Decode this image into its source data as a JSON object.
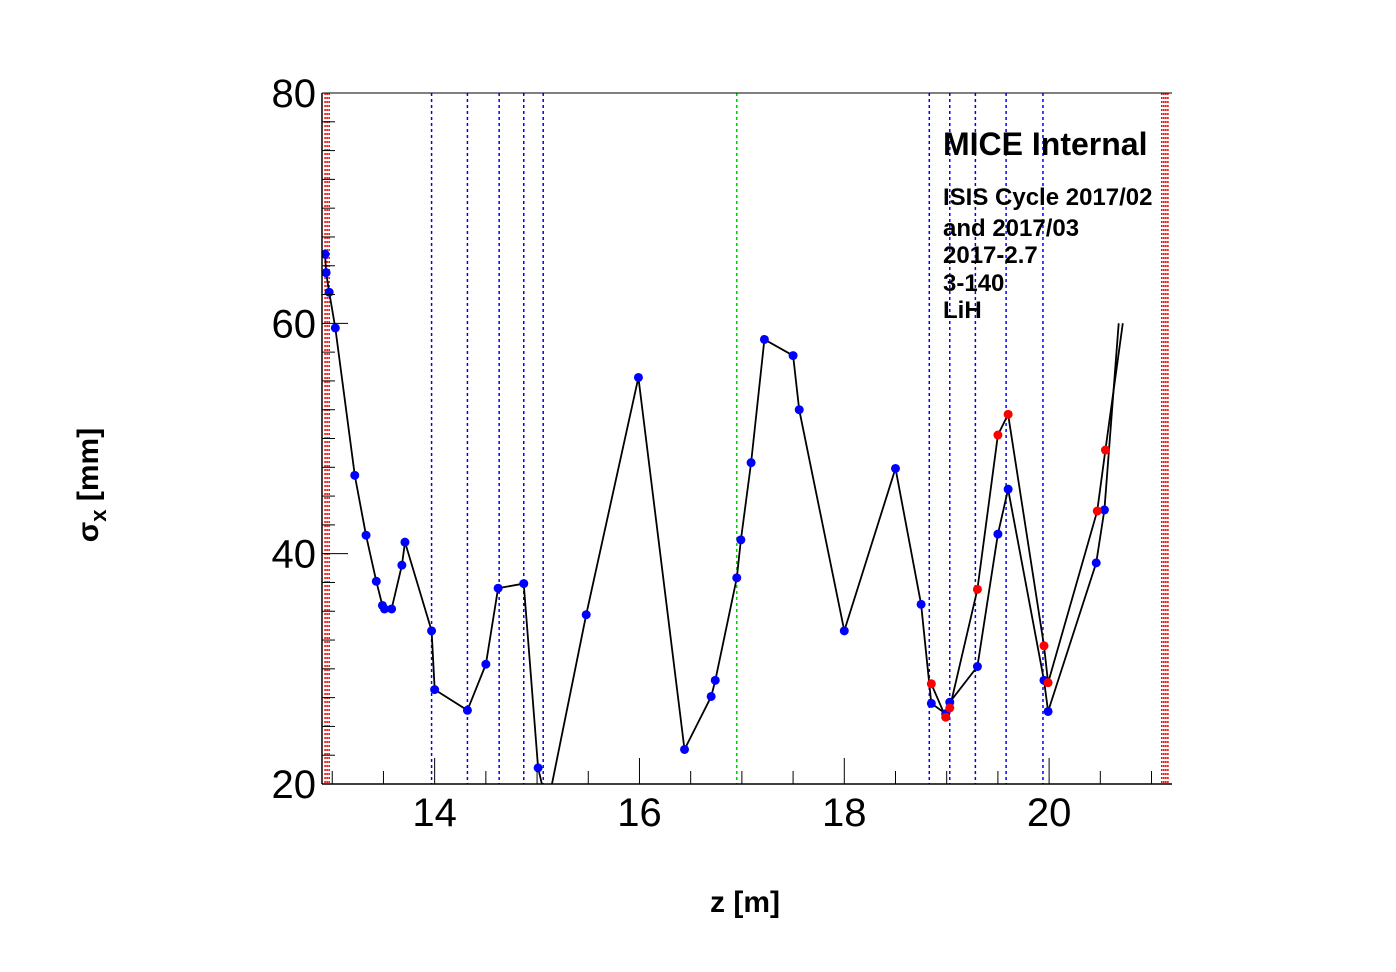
{
  "chart_data": {
    "type": "scatter",
    "xlabel": "z [m]",
    "ylabel_main": "σ",
    "ylabel_sub": "x",
    "ylabel_unit": " [mm]",
    "xlim": [
      12.9,
      21.2
    ],
    "ylim": [
      20,
      80
    ],
    "x_ticks": [
      14,
      16,
      18,
      20
    ],
    "y_ticks": [
      20,
      40,
      60,
      80
    ],
    "x_tick_labels": [
      "14",
      "16",
      "18",
      "20"
    ],
    "y_tick_labels": [
      "20",
      "40",
      "60",
      "80"
    ],
    "grid": false,
    "annotation": {
      "title": "MICE Internal",
      "lines": [
        "ISIS Cycle 2017/02",
        "and 2017/03",
        "2017-2.7",
        "3-140",
        "LiH"
      ]
    },
    "vlines_blue": [
      13.97,
      14.32,
      14.63,
      14.87,
      15.06,
      18.83,
      19.03,
      19.28,
      19.58,
      19.94
    ],
    "vlines_green": [
      16.95
    ],
    "vlines_red_left": [
      12.93,
      12.95,
      12.97
    ],
    "vlines_red_right": [
      21.1,
      21.12,
      21.14,
      21.16
    ],
    "colors": {
      "blue": "#0000ff",
      "red": "#ff0000",
      "green": "#00cc00",
      "line": "#000000"
    },
    "series": [
      {
        "color": "#0000ff",
        "points": [
          [
            12.93,
            66.0
          ],
          [
            12.94,
            64.4
          ],
          [
            12.97,
            62.7
          ],
          [
            13.03,
            59.6
          ],
          [
            13.22,
            46.8
          ],
          [
            13.33,
            41.6
          ],
          [
            13.43,
            37.6
          ],
          [
            13.49,
            35.5
          ],
          [
            13.51,
            35.2
          ],
          [
            13.58,
            35.2
          ],
          [
            13.68,
            39.0
          ],
          [
            13.71,
            41.0
          ],
          [
            13.97,
            33.3
          ],
          [
            14.0,
            28.2
          ],
          [
            14.32,
            26.4
          ],
          [
            14.5,
            30.4
          ],
          [
            14.62,
            37.0
          ],
          [
            14.87,
            37.4
          ],
          [
            15.01,
            21.4
          ],
          [
            15.1,
            18.0
          ],
          [
            15.48,
            34.7
          ],
          [
            15.99,
            55.3
          ],
          [
            16.44,
            23.0
          ],
          [
            16.7,
            27.6
          ],
          [
            16.74,
            29.0
          ],
          [
            16.95,
            37.9
          ],
          [
            16.99,
            41.2
          ],
          [
            17.09,
            47.9
          ],
          [
            17.22,
            58.6
          ],
          [
            17.5,
            57.2
          ],
          [
            17.56,
            52.5
          ],
          [
            18.0,
            33.3
          ],
          [
            18.5,
            47.4
          ],
          [
            18.75,
            35.6
          ],
          [
            18.85,
            27.0
          ],
          [
            18.99,
            26.1
          ],
          [
            19.03,
            27.1
          ],
          [
            19.3,
            30.2
          ],
          [
            19.5,
            41.7
          ],
          [
            19.6,
            45.6
          ],
          [
            19.95,
            29.0
          ],
          [
            19.99,
            26.3
          ],
          [
            20.46,
            39.2
          ],
          [
            20.54,
            43.8
          ],
          [
            20.68,
            60.0
          ]
        ]
      },
      {
        "color": "#ff0000",
        "points": [
          [
            18.85,
            28.7
          ],
          [
            18.99,
            25.8
          ],
          [
            19.03,
            26.6
          ],
          [
            19.3,
            36.9
          ],
          [
            19.5,
            50.3
          ],
          [
            19.6,
            52.1
          ],
          [
            19.95,
            32.0
          ],
          [
            19.99,
            28.8
          ],
          [
            20.47,
            43.7
          ],
          [
            20.55,
            49.0
          ],
          [
            20.72,
            60.0
          ]
        ]
      }
    ]
  }
}
